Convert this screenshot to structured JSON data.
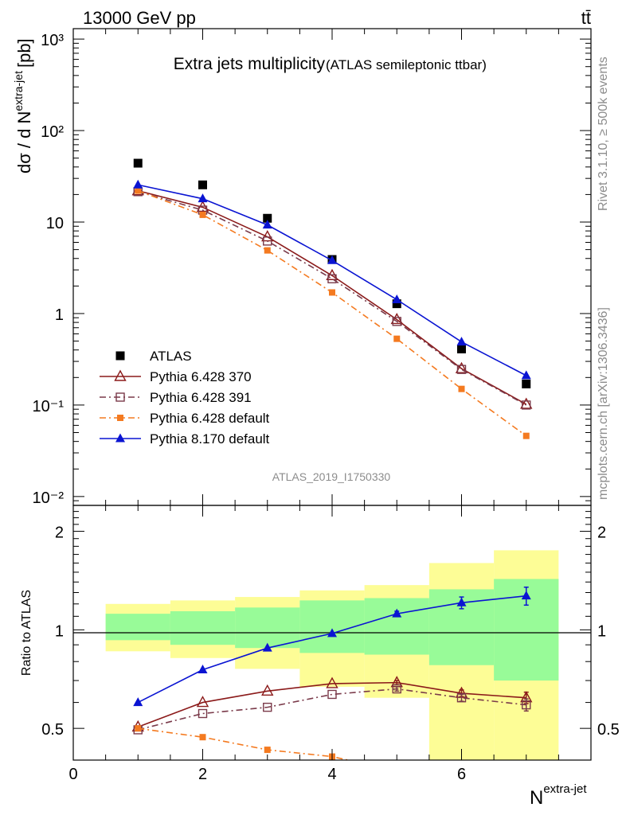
{
  "header": {
    "energy_label": "13000 GeV pp",
    "process_label": "tt̄"
  },
  "side_notes": {
    "rivet": "Rivet 3.1.10, ≥ 500k events",
    "mcplots": "mcplots.cern.ch [arXiv:1306.3436]"
  },
  "chart_data": [
    {
      "type": "scatter",
      "title": "Extra jets multiplicity",
      "subtitle": "(ATLAS semileptonic ttbar)",
      "ylabel_main": "dσ / d N",
      "ylabel_sup": "extra-jet",
      "ylabel_unit": "[pb]",
      "yscale": "log",
      "ylim": [
        0.008,
        1300
      ],
      "xlim": [
        0,
        8
      ],
      "y_tick_labels": [
        "10⁻²",
        "10⁻¹",
        "1",
        "10",
        "10²",
        "10³"
      ],
      "analysis_tag": "ATLAS_2019_I1750330",
      "legend_position": "bottom-left",
      "series": [
        {
          "name": "ATLAS",
          "color": "#000000",
          "marker": "square-filled",
          "line": "none",
          "x": [
            1,
            2,
            3,
            4,
            5,
            6,
            7
          ],
          "y": [
            44,
            25.5,
            11,
            3.9,
            1.28,
            0.41,
            0.17
          ]
        },
        {
          "name": "Pythia 6.428 370",
          "color": "#8b1a1a",
          "marker": "triangle-open",
          "line": "solid",
          "x": [
            1,
            2,
            3,
            4,
            5,
            6,
            7
          ],
          "y": [
            22,
            14.5,
            6.9,
            2.6,
            0.86,
            0.25,
            0.102
          ]
        },
        {
          "name": "Pythia 6.428 391",
          "color": "#7a3a4a",
          "marker": "square-open",
          "line": "dashdot",
          "x": [
            1,
            2,
            3,
            4,
            5,
            6,
            7
          ],
          "y": [
            21.5,
            13.5,
            6.2,
            2.4,
            0.82,
            0.245,
            0.1
          ]
        },
        {
          "name": "Pythia 6.428 default",
          "color": "#f47a20",
          "marker": "square-filled-small",
          "line": "dashdot",
          "x": [
            1,
            2,
            3,
            4,
            5,
            6,
            7
          ],
          "y": [
            22,
            12,
            4.9,
            1.7,
            0.53,
            0.15,
            0.046
          ]
        },
        {
          "name": "Pythia 8.170 default",
          "color": "#0a14d2",
          "marker": "triangle-filled",
          "line": "solid",
          "x": [
            1,
            2,
            3,
            4,
            5,
            6,
            7
          ],
          "y": [
            25.5,
            18,
            9.3,
            3.8,
            1.42,
            0.49,
            0.21
          ]
        }
      ]
    },
    {
      "type": "scatter",
      "ylabel": "Ratio to ATLAS",
      "xlabel_main": "N",
      "xlabel_sup": "extra-jet",
      "yscale": "log",
      "ylim": [
        0.4,
        2.4
      ],
      "xlim": [
        0,
        8
      ],
      "x_tick_labels": [
        "0",
        "2",
        "4",
        "6"
      ],
      "y_tick_labels": [
        "0.5",
        "1",
        "2"
      ],
      "bands": {
        "bin_edges": [
          0.5,
          1.5,
          2.5,
          3.5,
          4.5,
          5.5,
          6.5,
          7.5
        ],
        "yellow": [
          [
            0.86,
            1.2
          ],
          [
            0.82,
            1.23
          ],
          [
            0.76,
            1.26
          ],
          [
            0.67,
            1.32
          ],
          [
            0.62,
            1.37
          ],
          [
            0.37,
            1.6
          ],
          [
            0.3,
            1.75
          ]
        ],
        "green": [
          [
            0.93,
            1.12
          ],
          [
            0.9,
            1.14
          ],
          [
            0.88,
            1.17
          ],
          [
            0.85,
            1.23
          ],
          [
            0.84,
            1.25
          ],
          [
            0.78,
            1.33
          ],
          [
            0.7,
            1.43
          ]
        ]
      },
      "series": [
        {
          "name": "Pythia 6.428 370",
          "color": "#8b1a1a",
          "marker": "triangle-open",
          "line": "solid",
          "x": [
            1,
            2,
            3,
            4,
            5,
            6,
            7
          ],
          "y": [
            0.505,
            0.6,
            0.65,
            0.685,
            0.69,
            0.64,
            0.62
          ],
          "err": [
            0,
            0,
            0,
            0,
            0.01,
            0.015,
            0.025
          ]
        },
        {
          "name": "Pythia 6.428 391",
          "color": "#7a3a4a",
          "marker": "square-open",
          "line": "dashdot",
          "x": [
            1,
            2,
            3,
            4,
            5,
            6,
            7
          ],
          "y": [
            0.495,
            0.555,
            0.58,
            0.635,
            0.66,
            0.62,
            0.59
          ],
          "err": [
            0,
            0,
            0,
            0,
            0.01,
            0.015,
            0.025
          ]
        },
        {
          "name": "Pythia 6.428 default",
          "color": "#f47a20",
          "marker": "square-filled-small",
          "line": "dashdot",
          "x": [
            1,
            2,
            3,
            4,
            5
          ],
          "y": [
            0.5,
            0.47,
            0.43,
            0.41,
            0.37
          ],
          "err": [
            0,
            0,
            0,
            0,
            0
          ]
        },
        {
          "name": "Pythia 8.170 default",
          "color": "#0a14d2",
          "marker": "triangle-filled",
          "line": "solid",
          "x": [
            1,
            2,
            3,
            4,
            5,
            6,
            7
          ],
          "y": [
            0.6,
            0.755,
            0.88,
            0.975,
            1.12,
            1.21,
            1.27
          ],
          "err": [
            0,
            0,
            0,
            0,
            0.02,
            0.05,
            0.08
          ]
        }
      ]
    }
  ]
}
